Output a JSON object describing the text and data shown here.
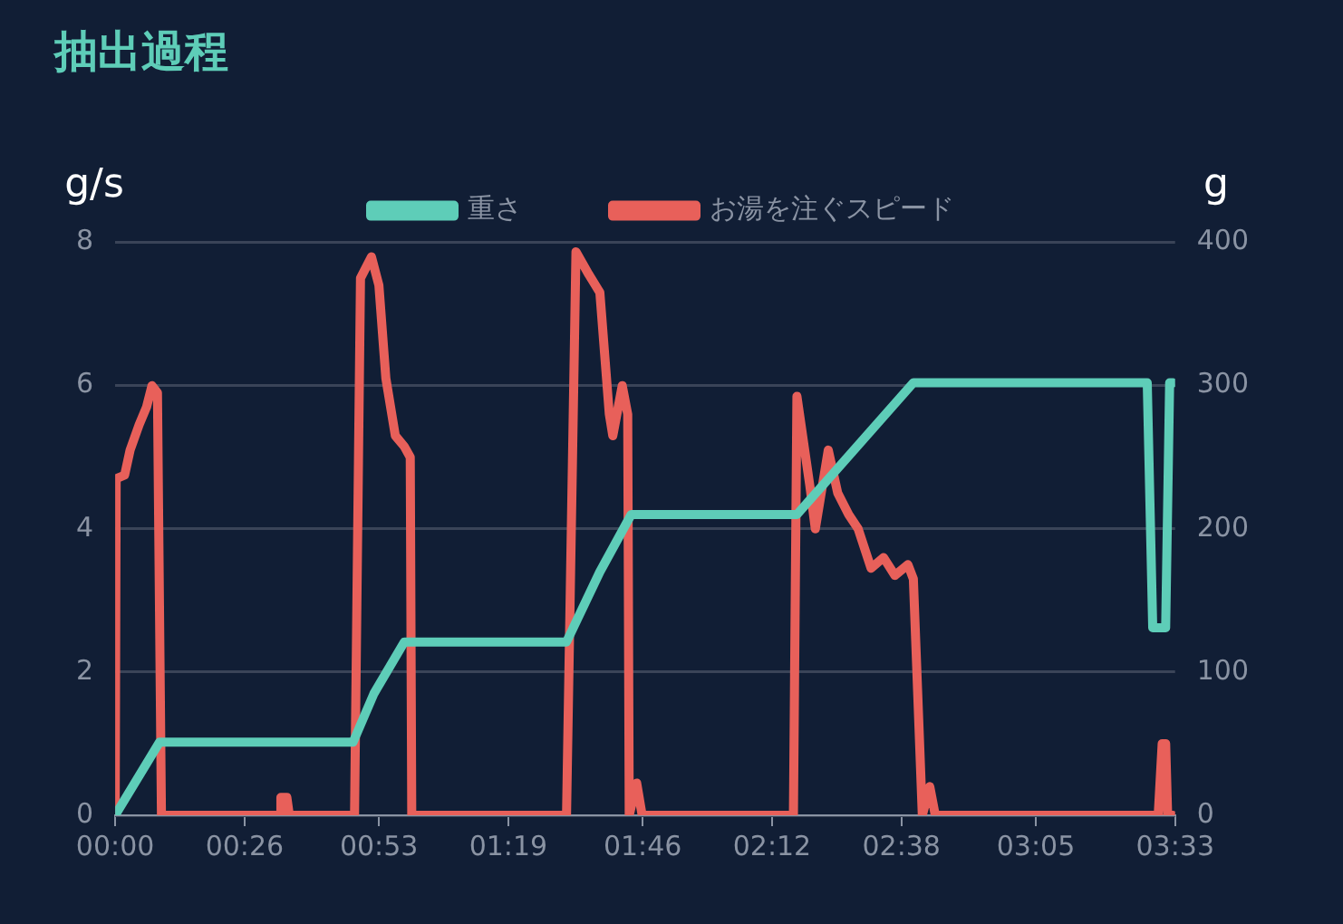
{
  "chart_data": {
    "type": "line",
    "title": "抽出過程",
    "ylabel": "g/s",
    "y2label": "g",
    "xlim": [
      0,
      213
    ],
    "xticks": [
      {
        "value": 0,
        "label": "00:00"
      },
      {
        "value": 26,
        "label": "00:26"
      },
      {
        "value": 53,
        "label": "00:53"
      },
      {
        "value": 79,
        "label": "01:19"
      },
      {
        "value": 106,
        "label": "01:46"
      },
      {
        "value": 132,
        "label": "02:12"
      },
      {
        "value": 158,
        "label": "02:38"
      },
      {
        "value": 185,
        "label": "03:05"
      },
      {
        "value": 213,
        "label": "03:33"
      }
    ],
    "ylim": [
      0,
      8
    ],
    "yticks": [
      0,
      2,
      4,
      6,
      8
    ],
    "y2lim": [
      0,
      400
    ],
    "y2ticks": [
      0,
      100,
      200,
      300,
      400
    ],
    "grid": "y",
    "legend": "top",
    "marker": "none",
    "line_style": "solid",
    "series": [
      {
        "name": "重さ",
        "color": "#5ecdb8",
        "axis": "y2",
        "x": [
          0,
          8.9,
          47.8,
          52,
          58.1,
          90.7,
          97.4,
          103.7,
          137,
          160.4,
          207.4,
          208.5,
          211.1,
          211.9,
          212.6
        ],
        "values": [
          0,
          51,
          51,
          85,
          121,
          121,
          170,
          210,
          210,
          302,
          302,
          131,
          131,
          302,
          302
        ]
      },
      {
        "name": "お湯を注ぐスピード",
        "color": "#e8605a",
        "axis": "y",
        "x": [
          0,
          0.2,
          1.9,
          3.0,
          4.8,
          6.3,
          7.4,
          8.5,
          9.3,
          33,
          33.3,
          34.5,
          35,
          48.1,
          49.3,
          51.5,
          53,
          54.4,
          56.3,
          58.1,
          59.3,
          59.6,
          90.7,
          92.6,
          95.2,
          97.4,
          99.3,
          100,
          101.9,
          103,
          103.3,
          104.8,
          105.9,
          136.3,
          137,
          139.6,
          140.7,
          143.3,
          145.2,
          147.4,
          149.3,
          151.9,
          154.4,
          156.7,
          159.3,
          160.4,
          162.2,
          163.7,
          164.8,
          209.6,
          210.4,
          211.1,
          211.5,
          212.6
        ],
        "values": [
          0,
          4.7,
          4.75,
          5.1,
          5.45,
          5.7,
          6.0,
          5.9,
          0,
          0,
          0.25,
          0.25,
          0,
          0,
          7.5,
          7.8,
          7.4,
          6.1,
          5.3,
          5.15,
          5.0,
          0,
          0,
          7.87,
          7.55,
          7.3,
          5.6,
          5.3,
          6.0,
          5.6,
          0,
          0.45,
          0,
          0,
          5.85,
          4.6,
          4.0,
          5.1,
          4.5,
          4.2,
          4.0,
          3.45,
          3.6,
          3.35,
          3.5,
          3.3,
          0,
          0.4,
          0,
          0,
          1.0,
          1.0,
          0,
          0
        ]
      }
    ]
  }
}
